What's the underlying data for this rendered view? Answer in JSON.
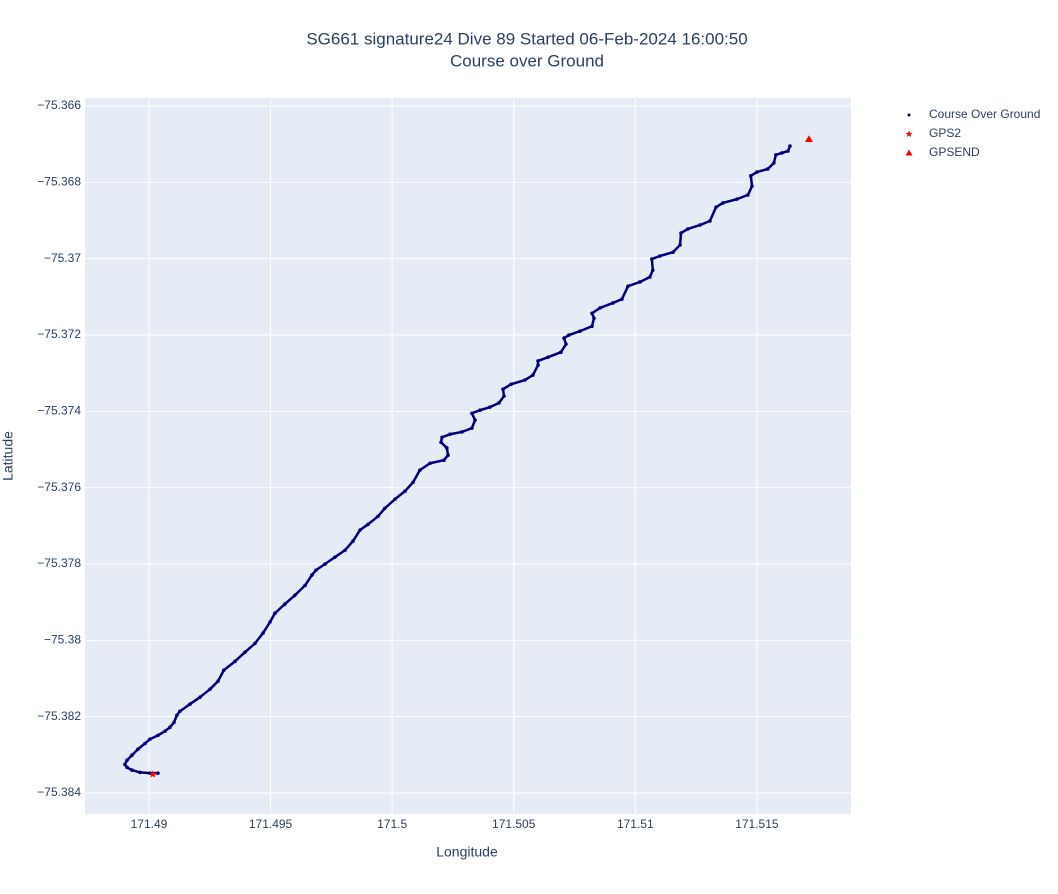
{
  "chart_data": {
    "type": "scatter",
    "title": "SG661 signature24 Dive 89 Started 06-Feb-2024 16:00:50",
    "subtitle": "Course over Ground",
    "x_label": "Longitude",
    "y_label": "Latitude",
    "xlim": [
      171.48737,
      171.51887
    ],
    "ylim": [
      -75.38455,
      -75.36579
    ],
    "xticks": [
      171.49,
      171.495,
      171.5,
      171.505,
      171.51,
      171.515
    ],
    "yticks": [
      {
        "value": -75.366,
        "label": "−75.366"
      },
      {
        "value": -75.368,
        "label": "−75.368"
      },
      {
        "value": -75.37,
        "label": "−75.37"
      },
      {
        "value": -75.372,
        "label": "−75.372"
      },
      {
        "value": -75.374,
        "label": "−75.374"
      },
      {
        "value": -75.376,
        "label": "−75.376"
      },
      {
        "value": -75.378,
        "label": "−75.378"
      },
      {
        "value": -75.38,
        "label": "−75.38"
      },
      {
        "value": -75.382,
        "label": "−75.382"
      },
      {
        "value": -75.384,
        "label": "−75.384"
      }
    ],
    "grid": true,
    "legend": "outside-right",
    "series": [
      {
        "name": "Course Over Ground",
        "color": "#00007f",
        "symbol": "circle",
        "x": [
          171.49037,
          171.49004,
          171.48963,
          171.4893,
          171.4891,
          171.48901,
          171.4891,
          171.4893,
          171.48955,
          171.48984,
          171.49004,
          171.49037,
          171.49066,
          171.49086,
          171.49103,
          171.49115,
          171.49127,
          171.49169,
          171.4921,
          171.49251,
          171.49284,
          171.49308,
          171.49354,
          171.49395,
          171.49436,
          171.49469,
          171.49498,
          171.49518,
          171.49559,
          171.496,
          171.49642,
          171.4967,
          171.49687,
          171.49724,
          171.49765,
          171.49806,
          171.49839,
          171.49868,
          171.49901,
          171.49942,
          171.4997,
          171.50012,
          171.50053,
          171.50086,
          171.50114,
          171.50156,
          171.50213,
          171.5023,
          171.50225,
          171.50201,
          171.50205,
          171.50238,
          171.50287,
          171.50328,
          171.50341,
          171.50328,
          171.50361,
          171.50402,
          171.50439,
          171.5046,
          171.50456,
          171.50489,
          171.50546,
          171.50579,
          171.506,
          171.506,
          171.50641,
          171.50694,
          171.50715,
          171.50707,
          171.50727,
          171.50772,
          171.50822,
          171.5083,
          171.50822,
          171.50855,
          171.50908,
          171.50945,
          171.5097,
          171.51019,
          171.5106,
          171.51072,
          171.51068,
          171.51101,
          171.51155,
          171.51184,
          171.51188,
          171.51216,
          171.51266,
          171.51307,
          171.51332,
          171.5136,
          171.51418,
          171.51463,
          171.5148,
          171.51475,
          171.515,
          171.51545,
          171.5157,
          171.51578,
          171.51603,
          171.51628,
          171.51636
        ],
        "values": [
          -75.38348,
          -75.38348,
          -75.38346,
          -75.3834,
          -75.38333,
          -75.38325,
          -75.38314,
          -75.38301,
          -75.38285,
          -75.3827,
          -75.38259,
          -75.38249,
          -75.38238,
          -75.38228,
          -75.38215,
          -75.38196,
          -75.38186,
          -75.38167,
          -75.38149,
          -75.38128,
          -75.38107,
          -75.38078,
          -75.38055,
          -75.38031,
          -75.38008,
          -75.37981,
          -75.37952,
          -75.37929,
          -75.37905,
          -75.37882,
          -75.37856,
          -75.37829,
          -75.37816,
          -75.378,
          -75.37782,
          -75.37764,
          -75.3774,
          -75.37711,
          -75.37696,
          -75.37675,
          -75.37654,
          -75.3763,
          -75.37609,
          -75.37586,
          -75.37554,
          -75.37536,
          -75.37528,
          -75.37515,
          -75.37496,
          -75.37481,
          -75.37468,
          -75.3746,
          -75.37454,
          -75.37444,
          -75.37423,
          -75.37405,
          -75.37397,
          -75.37389,
          -75.37378,
          -75.3736,
          -75.37342,
          -75.37329,
          -75.37318,
          -75.37305,
          -75.37279,
          -75.37268,
          -75.37258,
          -75.37245,
          -75.37224,
          -75.37208,
          -75.372,
          -75.3719,
          -75.37177,
          -75.37156,
          -75.37143,
          -75.37129,
          -75.37116,
          -75.37106,
          -75.37072,
          -75.37061,
          -75.37048,
          -75.3703,
          -75.37001,
          -75.36993,
          -75.36983,
          -75.36964,
          -75.36933,
          -75.36922,
          -75.36912,
          -75.36901,
          -75.36865,
          -75.36854,
          -75.36844,
          -75.36833,
          -75.3681,
          -75.36783,
          -75.36773,
          -75.36765,
          -75.36749,
          -75.36728,
          -75.36723,
          -75.36718,
          -75.36705
        ]
      },
      {
        "name": "GPS2",
        "color": "#ff0000",
        "symbol": "star",
        "x": [
          171.49016
        ],
        "values": [
          -75.38351
        ]
      },
      {
        "name": "GPSEND",
        "color": "#ff0000",
        "symbol": "triangle-up",
        "x": [
          171.51714
        ],
        "values": [
          -75.36687
        ]
      }
    ]
  }
}
